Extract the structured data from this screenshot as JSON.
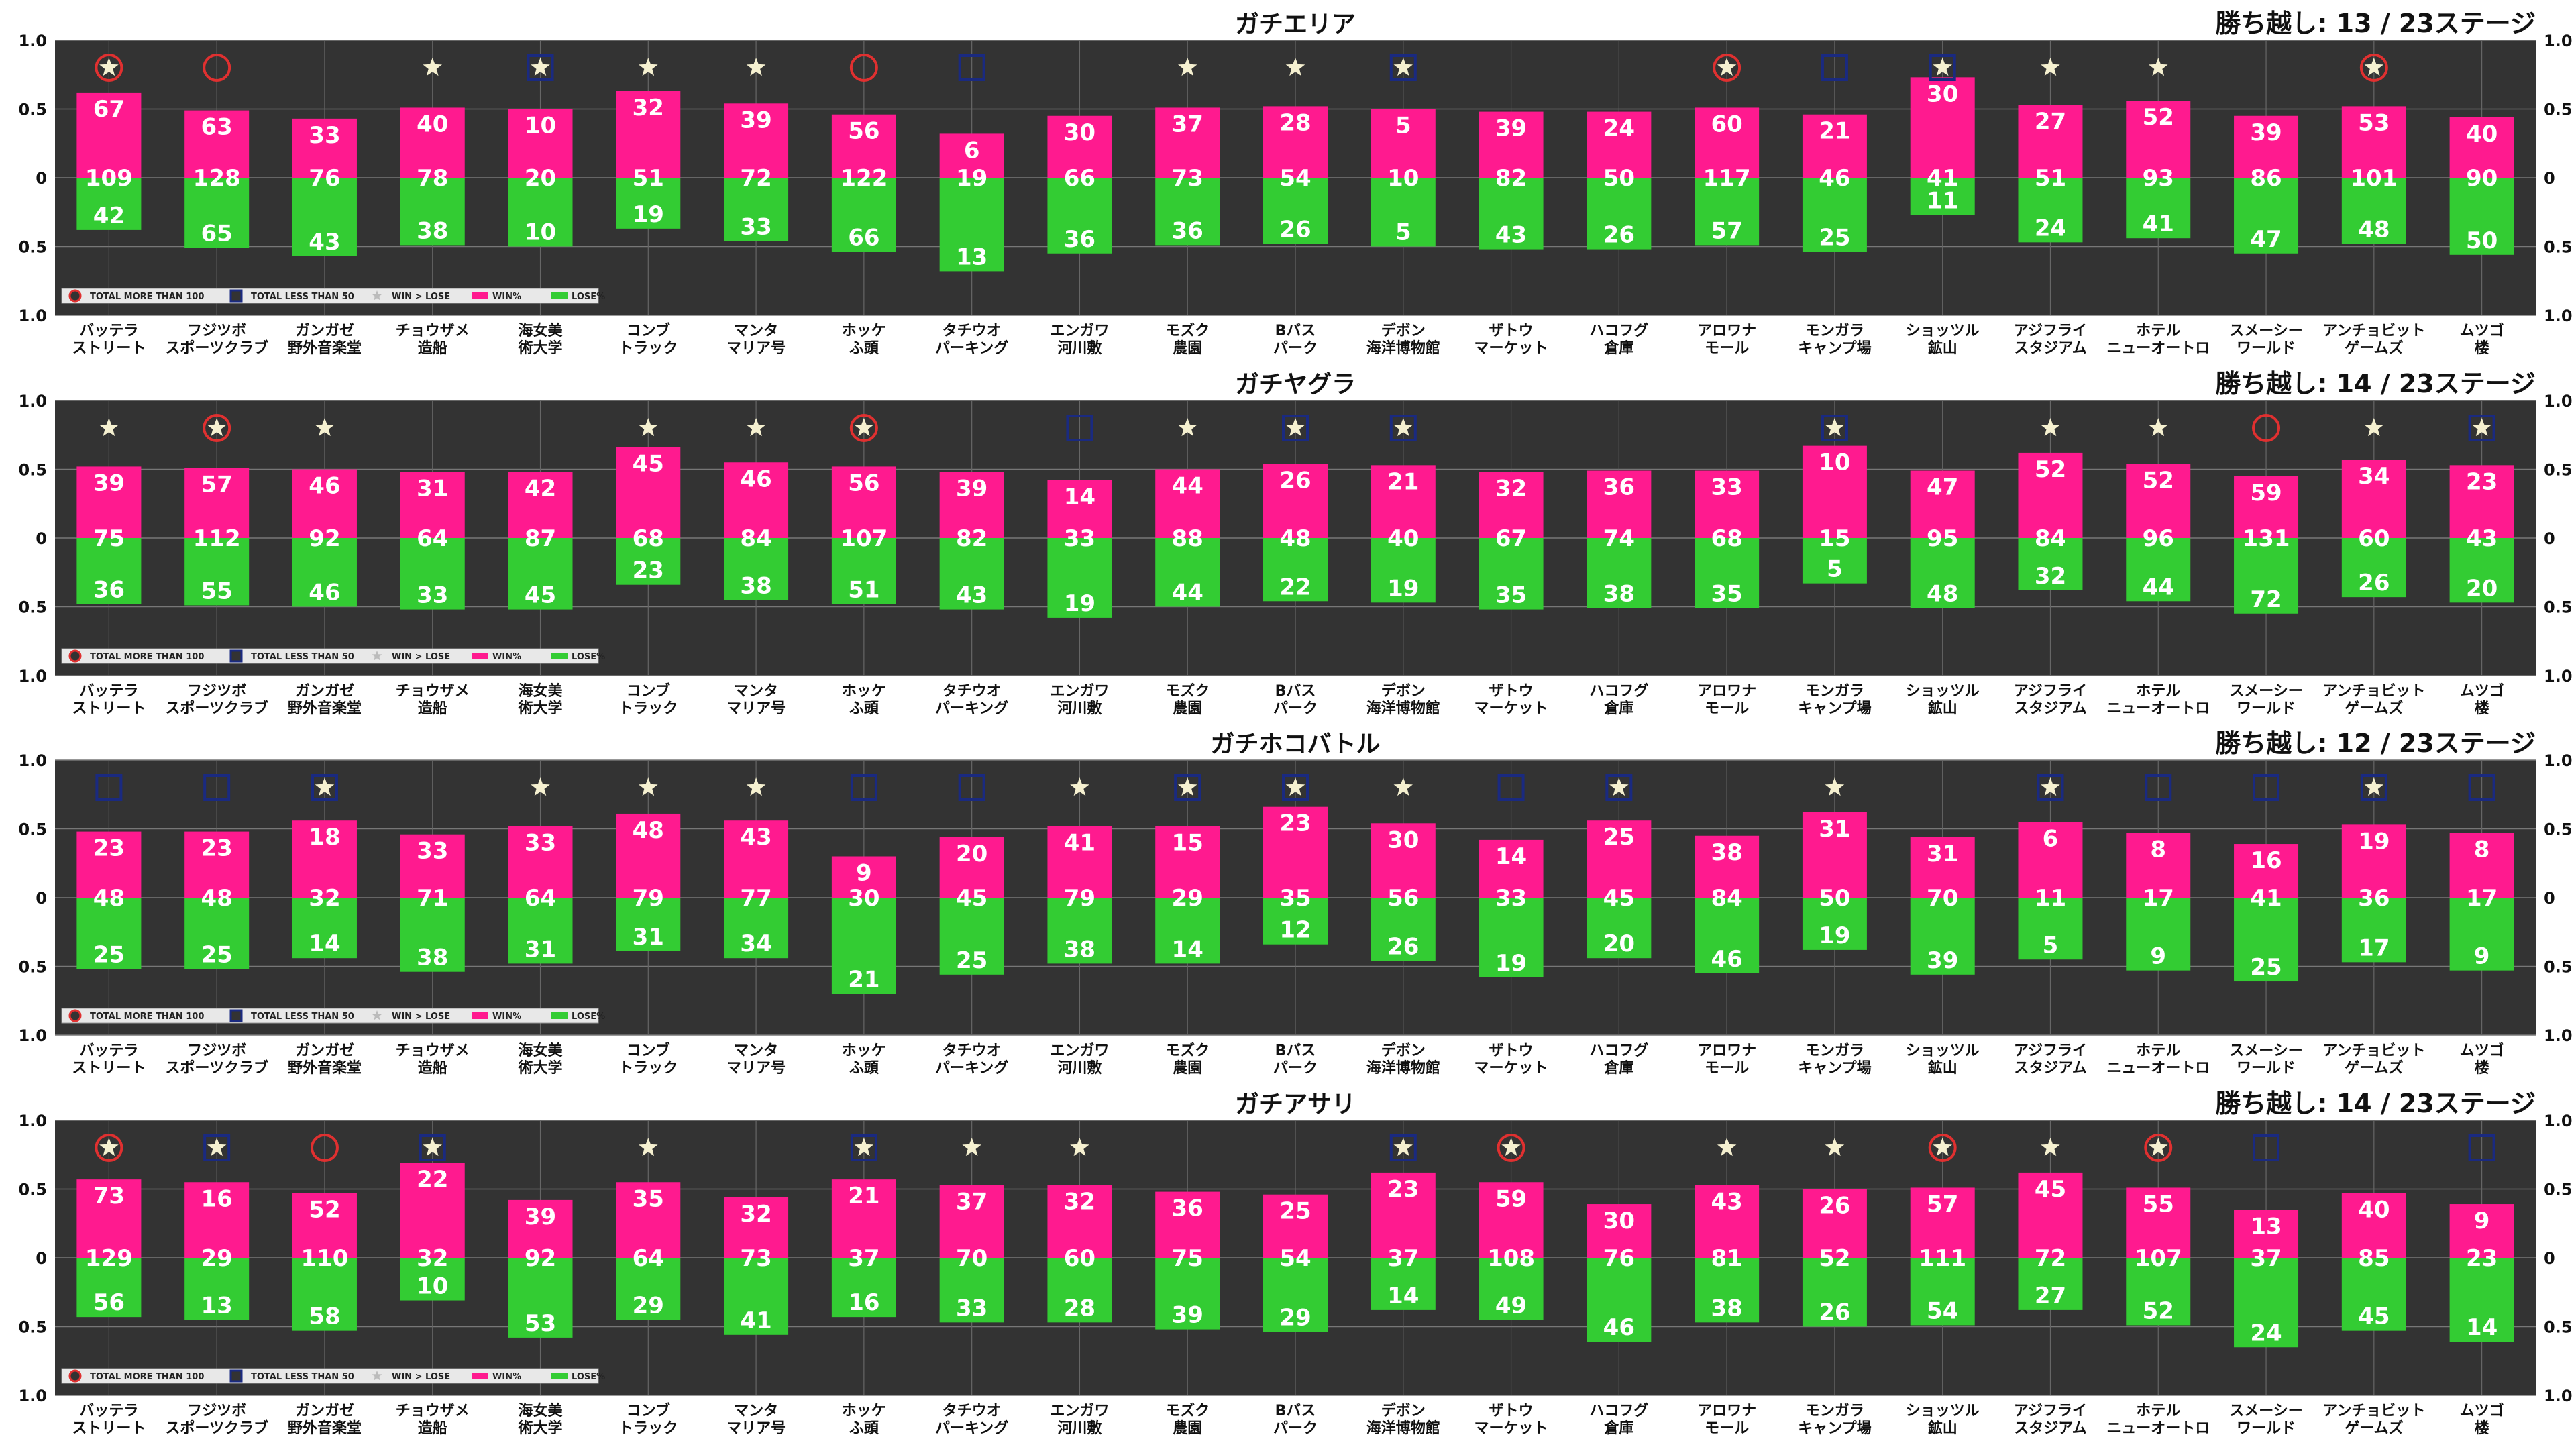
{
  "stages": [
    [
      "バッテラ",
      "ストリート"
    ],
    [
      "フジツボ",
      "スポーツクラブ"
    ],
    [
      "ガンガゼ",
      "野外音楽堂"
    ],
    [
      "チョウザメ",
      "造船"
    ],
    [
      "海女美",
      "術大学"
    ],
    [
      "コンブ",
      "トラック"
    ],
    [
      "マンタ",
      "マリア号"
    ],
    [
      "ホッケ",
      "ふ頭"
    ],
    [
      "タチウオ",
      "パーキング"
    ],
    [
      "エンガワ",
      "河川敷"
    ],
    [
      "モズク",
      "農園"
    ],
    [
      "Bバス",
      "パーク"
    ],
    [
      "デボン",
      "海洋博物館"
    ],
    [
      "ザトウ",
      "マーケット"
    ],
    [
      "ハコフグ",
      "倉庫"
    ],
    [
      "アロワナ",
      "モール"
    ],
    [
      "モンガラ",
      "キャンプ場"
    ],
    [
      "ショッツル",
      "鉱山"
    ],
    [
      "アジフライ",
      "スタジアム"
    ],
    [
      "ホテル",
      "ニューオートロ"
    ],
    [
      "スメーシー",
      "ワールド"
    ],
    [
      "アンチョビット",
      "ゲームズ"
    ],
    [
      "ムツゴ",
      "楼"
    ]
  ],
  "legend": [
    "TOTAL MORE THAN 100",
    "TOTAL LESS THAN 50",
    "WIN > LOSE",
    "WIN%",
    "LOSE%"
  ],
  "y_ticks_top": [
    "1.0",
    "0.5",
    "0"
  ],
  "y_ticks_bottom": [
    "0.5",
    "1.0"
  ],
  "colors": {
    "win": "#ff1a8f",
    "lose": "#33cc33",
    "bg": "#333333",
    "circle": "#e03030",
    "square": "#1a2a80",
    "star": "#f5f0d0"
  },
  "chart_data": [
    {
      "type": "bar",
      "title": "ガチエリア",
      "score": "勝ち越し: 13 / 23ステージ",
      "ylim": [
        -1,
        1
      ],
      "series": [
        {
          "name": "WIN",
          "values": [
            67,
            63,
            33,
            40,
            10,
            32,
            39,
            56,
            6,
            30,
            37,
            28,
            5,
            39,
            24,
            60,
            21,
            30,
            27,
            52,
            39,
            53,
            40
          ]
        },
        {
          "name": "TOTAL",
          "values": [
            109,
            128,
            76,
            78,
            20,
            51,
            72,
            122,
            19,
            66,
            73,
            54,
            10,
            82,
            50,
            117,
            46,
            41,
            51,
            93,
            86,
            101,
            90
          ]
        },
        {
          "name": "LOSE",
          "values": [
            42,
            65,
            43,
            38,
            10,
            19,
            33,
            66,
            13,
            36,
            36,
            26,
            5,
            43,
            26,
            57,
            25,
            11,
            24,
            41,
            47,
            48,
            50
          ]
        }
      ],
      "win_ratio": [
        0.62,
        0.49,
        0.43,
        0.51,
        0.5,
        0.63,
        0.54,
        0.46,
        0.32,
        0.45,
        0.51,
        0.52,
        0.5,
        0.48,
        0.48,
        0.51,
        0.46,
        0.73,
        0.53,
        0.56,
        0.45,
        0.52,
        0.44
      ],
      "markers": [
        "circle-star",
        "circle",
        "",
        "star",
        "square-star",
        "star",
        "star",
        "circle",
        "square",
        "",
        "star",
        "star",
        "square-star",
        "",
        "",
        "circle-star",
        "square",
        "square-star",
        "star",
        "star",
        "",
        "circle-star",
        ""
      ]
    },
    {
      "type": "bar",
      "title": "ガチヤグラ",
      "score": "勝ち越し: 14 / 23ステージ",
      "ylim": [
        -1,
        1
      ],
      "series": [
        {
          "name": "WIN",
          "values": [
            39,
            57,
            46,
            31,
            42,
            45,
            46,
            56,
            39,
            14,
            44,
            26,
            21,
            32,
            36,
            33,
            10,
            47,
            52,
            52,
            59,
            34,
            23
          ]
        },
        {
          "name": "TOTAL",
          "values": [
            75,
            112,
            92,
            64,
            87,
            68,
            84,
            107,
            82,
            33,
            88,
            48,
            40,
            67,
            74,
            68,
            15,
            95,
            84,
            96,
            131,
            60,
            43
          ]
        },
        {
          "name": "LOSE",
          "values": [
            36,
            55,
            46,
            33,
            45,
            23,
            38,
            51,
            43,
            19,
            44,
            22,
            19,
            35,
            38,
            35,
            5,
            48,
            32,
            44,
            72,
            26,
            20
          ]
        }
      ],
      "win_ratio": [
        0.52,
        0.51,
        0.5,
        0.48,
        0.48,
        0.66,
        0.55,
        0.52,
        0.48,
        0.42,
        0.5,
        0.54,
        0.53,
        0.48,
        0.49,
        0.49,
        0.67,
        0.49,
        0.62,
        0.54,
        0.45,
        0.57,
        0.53
      ],
      "markers": [
        "star",
        "circle-star",
        "star",
        "",
        "",
        "star",
        "star",
        "circle-star",
        "",
        "square",
        "star",
        "square-star",
        "square-star",
        "",
        "",
        "",
        "square-star",
        "",
        "star",
        "star",
        "circle",
        "star",
        "square-star"
      ]
    },
    {
      "type": "bar",
      "title": "ガチホコバトル",
      "score": "勝ち越し: 12 / 23ステージ",
      "ylim": [
        -1,
        1
      ],
      "series": [
        {
          "name": "WIN",
          "values": [
            23,
            23,
            18,
            33,
            33,
            48,
            43,
            9,
            20,
            41,
            15,
            23,
            30,
            14,
            25,
            38,
            31,
            31,
            6,
            8,
            16,
            19,
            8
          ]
        },
        {
          "name": "TOTAL",
          "values": [
            48,
            48,
            32,
            71,
            64,
            79,
            77,
            30,
            45,
            79,
            29,
            35,
            56,
            33,
            45,
            84,
            50,
            70,
            11,
            17,
            41,
            36,
            17
          ]
        },
        {
          "name": "LOSE",
          "values": [
            25,
            25,
            14,
            38,
            31,
            31,
            34,
            21,
            25,
            38,
            14,
            12,
            26,
            19,
            20,
            46,
            19,
            39,
            5,
            9,
            25,
            17,
            9
          ]
        }
      ],
      "win_ratio": [
        0.48,
        0.48,
        0.56,
        0.46,
        0.52,
        0.61,
        0.56,
        0.3,
        0.44,
        0.52,
        0.52,
        0.66,
        0.54,
        0.42,
        0.56,
        0.45,
        0.62,
        0.44,
        0.55,
        0.47,
        0.39,
        0.53,
        0.47
      ],
      "markers": [
        "square",
        "square",
        "square-star",
        "",
        "star",
        "star",
        "star",
        "square",
        "square",
        "star",
        "square-star",
        "square-star",
        "star",
        "square",
        "square-star",
        "",
        "star",
        "",
        "square-star",
        "square",
        "square",
        "square-star",
        "square"
      ]
    },
    {
      "type": "bar",
      "title": "ガチアサリ",
      "score": "勝ち越し: 14 / 23ステージ",
      "ylim": [
        -1,
        1
      ],
      "series": [
        {
          "name": "WIN",
          "values": [
            73,
            16,
            52,
            22,
            39,
            35,
            32,
            21,
            37,
            32,
            36,
            25,
            23,
            59,
            30,
            43,
            26,
            57,
            45,
            55,
            13,
            40,
            9
          ]
        },
        {
          "name": "TOTAL",
          "values": [
            129,
            29,
            110,
            32,
            92,
            64,
            73,
            37,
            70,
            60,
            75,
            54,
            37,
            108,
            76,
            81,
            52,
            111,
            72,
            107,
            37,
            85,
            23
          ]
        },
        {
          "name": "LOSE",
          "values": [
            56,
            13,
            58,
            10,
            53,
            29,
            41,
            16,
            33,
            28,
            39,
            29,
            14,
            49,
            46,
            38,
            26,
            54,
            27,
            52,
            24,
            45,
            14
          ]
        }
      ],
      "win_ratio": [
        0.57,
        0.55,
        0.47,
        0.69,
        0.42,
        0.55,
        0.44,
        0.57,
        0.53,
        0.53,
        0.48,
        0.46,
        0.62,
        0.55,
        0.39,
        0.53,
        0.5,
        0.51,
        0.62,
        0.51,
        0.35,
        0.47,
        0.39
      ],
      "markers": [
        "circle-star",
        "square-star",
        "circle",
        "square-star",
        "",
        "star",
        "",
        "square-star",
        "star",
        "star",
        "",
        "",
        "square-star",
        "circle-star",
        "",
        "star",
        "star",
        "circle-star",
        "star",
        "circle-star",
        "square",
        "",
        "square"
      ]
    }
  ]
}
